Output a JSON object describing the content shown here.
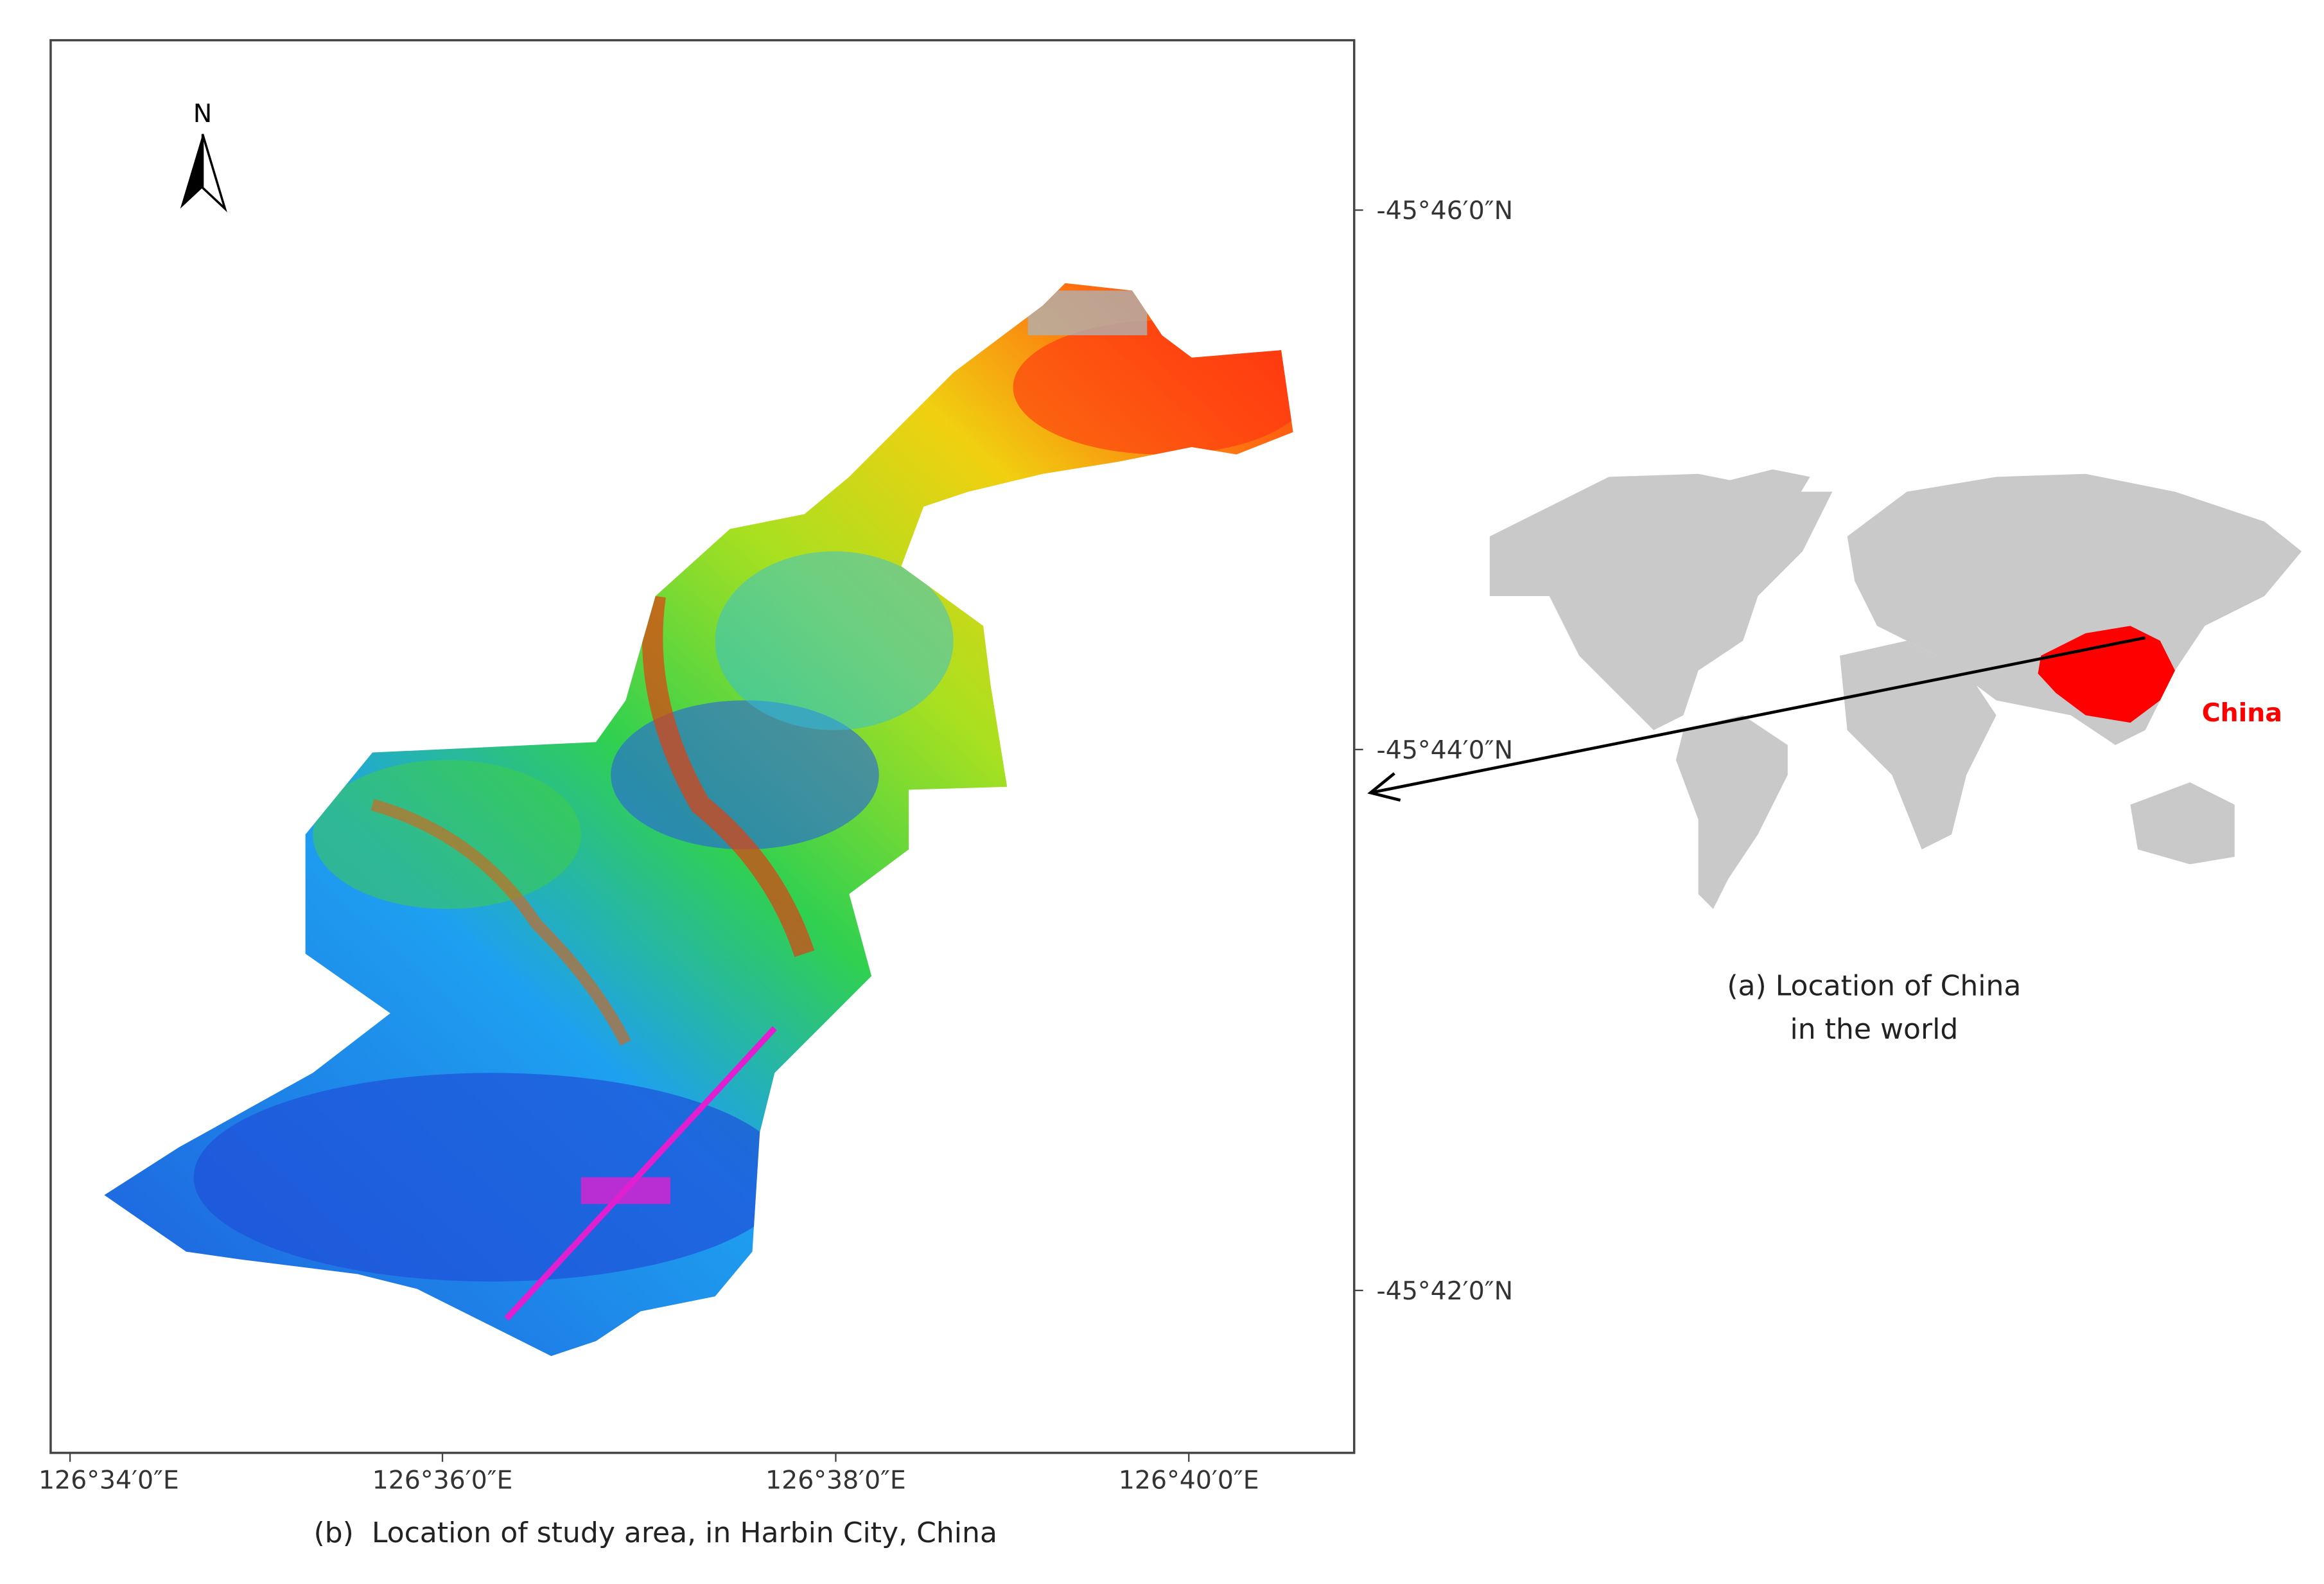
{
  "study_map": {
    "north_label": "N",
    "lat_labels": [
      "-45°46′0″N",
      "-45°44′0″N",
      "-45°42′0″N"
    ],
    "lon_labels": [
      "126°34′0″E",
      "126°36′0″E",
      "126°38′0″E",
      "126°40′0″E"
    ],
    "caption": "(b)  Location of study area, in Harbin City, China"
  },
  "world_map": {
    "country_label": "China",
    "caption_lines": [
      "(a) Location of China",
      "in the world"
    ]
  }
}
